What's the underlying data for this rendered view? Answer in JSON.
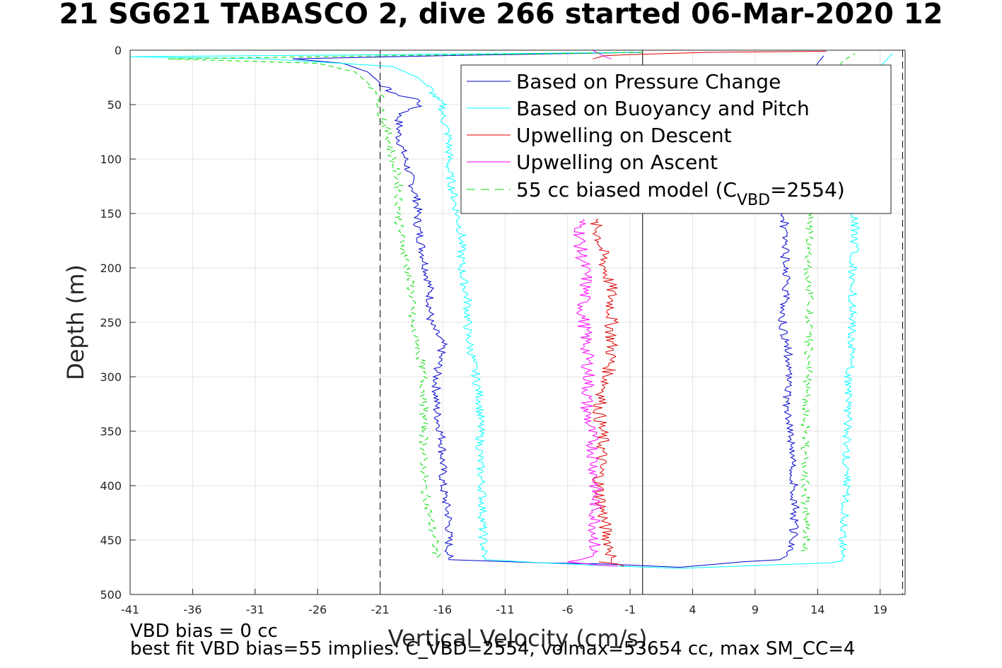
{
  "chart_data": {
    "type": "line",
    "title": "21 SG621 TABASCO 2, dive 266 started 06-Mar-2020 12",
    "xlabel": "Vertical Velocity (cm/s)",
    "ylabel": "Depth (m)",
    "xlim": [
      -41,
      21
    ],
    "ylim": [
      500,
      0
    ],
    "y_reversed": true,
    "grid": true,
    "legend_position": "top-right",
    "xticks": [
      -41,
      -36,
      -31,
      -26,
      -21,
      -16,
      -11,
      -6,
      -1,
      4,
      9,
      14,
      19
    ],
    "yticks": [
      0,
      50,
      100,
      150,
      200,
      250,
      300,
      350,
      400,
      450,
      500
    ],
    "reference_lines": [
      {
        "type": "dashed",
        "x": -21
      },
      {
        "type": "dashed",
        "x": 20.8
      },
      {
        "type": "solid",
        "x": 0
      }
    ],
    "series": [
      {
        "name": "Based on Pressure Change",
        "color": "#0000cc",
        "style": "solid",
        "descent": [
          [
            0.0,
            2
          ],
          [
            -16,
            5
          ],
          [
            -28,
            8
          ],
          [
            -24,
            12
          ],
          [
            -22,
            20
          ],
          [
            -21,
            30
          ],
          [
            -20,
            40
          ],
          [
            -18,
            45
          ],
          [
            -17.8,
            50
          ],
          [
            -19.5,
            60
          ],
          [
            -19.5,
            80
          ],
          [
            -19,
            100
          ],
          [
            -18.5,
            120
          ],
          [
            -18,
            140
          ],
          [
            -18,
            160
          ],
          [
            -17.5,
            190
          ],
          [
            -17,
            220
          ],
          [
            -17,
            250
          ],
          [
            -16,
            270
          ],
          [
            -16.5,
            300
          ],
          [
            -16.5,
            330
          ],
          [
            -16,
            360
          ],
          [
            -16,
            400
          ],
          [
            -15.5,
            430
          ],
          [
            -15.5,
            460
          ],
          [
            -15.5,
            468
          ],
          [
            -8,
            471
          ],
          [
            -3,
            472
          ],
          [
            -1,
            473
          ],
          [
            1,
            474
          ],
          [
            3,
            475
          ]
        ],
        "ascent": [
          [
            3,
            475
          ],
          [
            8,
            470
          ],
          [
            11,
            468
          ],
          [
            12,
            460
          ],
          [
            12.2,
            420
          ],
          [
            12,
            380
          ],
          [
            11.8,
            340
          ],
          [
            11.5,
            320
          ],
          [
            11.8,
            290
          ],
          [
            11.2,
            250
          ],
          [
            11.5,
            220
          ],
          [
            11.4,
            190
          ],
          [
            11.3,
            150
          ],
          [
            12,
            80
          ],
          [
            13,
            30
          ],
          [
            14,
            12
          ],
          [
            14.5,
            5
          ]
        ]
      },
      {
        "name": "Based on Buoyancy and Pitch",
        "color": "#00ffff",
        "style": "solid",
        "descent": [
          [
            0.0,
            2
          ],
          [
            -20,
            4
          ],
          [
            -41,
            6
          ],
          [
            -30,
            8
          ],
          [
            -20,
            15
          ],
          [
            -18,
            25
          ],
          [
            -17,
            35
          ],
          [
            -16.5,
            45
          ],
          [
            -16,
            50
          ],
          [
            -16,
            60
          ],
          [
            -15.5,
            80
          ],
          [
            -15.5,
            110
          ],
          [
            -15,
            140
          ],
          [
            -14.5,
            170
          ],
          [
            -14.5,
            200
          ],
          [
            -14,
            230
          ],
          [
            -14,
            260
          ],
          [
            -13.5,
            290
          ],
          [
            -13,
            320
          ],
          [
            -13,
            350
          ],
          [
            -13,
            380
          ],
          [
            -12.8,
            410
          ],
          [
            -12.8,
            440
          ],
          [
            -12.7,
            460
          ],
          [
            -12.6,
            468
          ],
          [
            -8,
            471
          ],
          [
            -2,
            474
          ],
          [
            3,
            476
          ]
        ],
        "ascent": [
          [
            3,
            476
          ],
          [
            10,
            473
          ],
          [
            15,
            471
          ],
          [
            16,
            469
          ],
          [
            16,
            460
          ],
          [
            16.2,
            420
          ],
          [
            16.3,
            380
          ],
          [
            16.4,
            340
          ],
          [
            16.5,
            300
          ],
          [
            16.8,
            250
          ],
          [
            16.8,
            200
          ],
          [
            17,
            170
          ],
          [
            17,
            150
          ],
          [
            18,
            40
          ],
          [
            19,
            15
          ],
          [
            20,
            3
          ]
        ]
      },
      {
        "name": "Upwelling on Descent",
        "color": "#dd0000",
        "style": "solid",
        "descent": [
          [
            14.7,
            1
          ],
          [
            5,
            2
          ],
          [
            -1,
            4
          ],
          [
            -3,
            5
          ],
          [
            -4,
            8
          ]
        ],
        "descent_deep": [
          [
            -4,
            155
          ],
          [
            -3.5,
            170
          ],
          [
            -3,
            200
          ],
          [
            -2.5,
            220
          ],
          [
            -2.5,
            250
          ],
          [
            -2.5,
            280
          ],
          [
            -2.8,
            300
          ],
          [
            -3.5,
            330
          ],
          [
            -3.2,
            360
          ],
          [
            -3.5,
            400
          ],
          [
            -3,
            440
          ],
          [
            -2.5,
            460
          ],
          [
            -2.5,
            471
          ]
        ],
        "ascent": [
          [
            -3.5,
            470
          ],
          [
            -2,
            472
          ],
          [
            -1.5,
            474
          ]
        ]
      },
      {
        "name": "Upwelling on Ascent",
        "color": "#ff00ff",
        "style": "solid",
        "descent": [
          [
            -4,
            0
          ],
          [
            -3.5,
            3
          ],
          [
            -3,
            6
          ],
          [
            -2.5,
            8
          ]
        ],
        "descent_deep": [
          [
            -5,
            155
          ],
          [
            -5,
            180
          ],
          [
            -4.5,
            210
          ],
          [
            -4.8,
            240
          ],
          [
            -4.5,
            270
          ],
          [
            -4.3,
            300
          ],
          [
            -4.5,
            330
          ],
          [
            -4,
            360
          ],
          [
            -3.8,
            390
          ],
          [
            -3.8,
            420
          ],
          [
            -3.8,
            450
          ],
          [
            -4,
            465
          ],
          [
            -5,
            468
          ],
          [
            -6,
            470
          ]
        ],
        "ascent": [
          [
            -6,
            470
          ],
          [
            -3.5,
            473
          ],
          [
            -2,
            474
          ]
        ]
      },
      {
        "name": "55 cc biased model (C_VBD=2554)",
        "color": "#00dd00",
        "style": "dashed",
        "descent": [
          [
            0.0,
            2
          ],
          [
            -20,
            5
          ],
          [
            -38,
            8
          ],
          [
            -26,
            12
          ],
          [
            -23,
            20
          ],
          [
            -22,
            30
          ],
          [
            -21,
            40
          ],
          [
            -21,
            55
          ],
          [
            -20.5,
            70
          ],
          [
            -20,
            100
          ],
          [
            -19.5,
            120
          ],
          [
            -19.5,
            140
          ],
          [
            -19.5,
            160
          ],
          [
            -19,
            190
          ],
          [
            -18.5,
            220
          ],
          [
            -18.5,
            250
          ],
          [
            -18,
            270
          ],
          [
            -17.5,
            300
          ],
          [
            -17.5,
            330
          ],
          [
            -17.5,
            360
          ],
          [
            -17.5,
            400
          ],
          [
            -17,
            430
          ],
          [
            -16.5,
            460
          ],
          [
            -16.5,
            468
          ]
        ],
        "ascent": [
          [
            13,
            460
          ],
          [
            13,
            420
          ],
          [
            13,
            380
          ],
          [
            13,
            340
          ],
          [
            13.2,
            300
          ],
          [
            13.4,
            250
          ],
          [
            13.2,
            200
          ],
          [
            13.4,
            150
          ],
          [
            14,
            80
          ],
          [
            15,
            30
          ],
          [
            16,
            10
          ],
          [
            17,
            3
          ]
        ]
      }
    ]
  },
  "legend": {
    "items": [
      {
        "label": "Based on Pressure Change",
        "color": "#0000cc",
        "dashed": false
      },
      {
        "label": "Based on Buoyancy and Pitch",
        "color": "#00ffff",
        "dashed": false
      },
      {
        "label": "Upwelling on Descent",
        "color": "#dd0000",
        "dashed": false
      },
      {
        "label": "Upwelling on Ascent",
        "color": "#ff00ff",
        "dashed": false
      },
      {
        "label": "55 cc biased model (C",
        "sub": "VBD",
        "tail": "=2554)",
        "color": "#00dd00",
        "dashed": true
      }
    ]
  },
  "footnotes": {
    "line1": "VBD bias = 0 cc",
    "line2": "best fit VBD bias=55 implies: C_VBD=2554, volmax=53654 cc, max SM_CC=4"
  }
}
